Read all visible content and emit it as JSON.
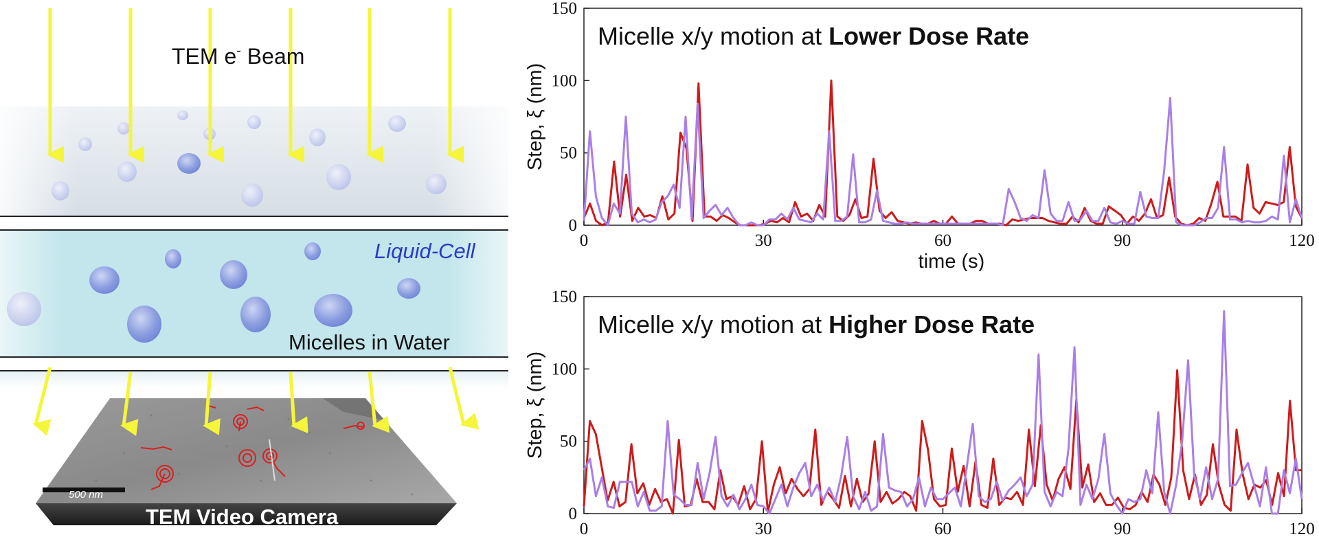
{
  "schematic": {
    "beam_label": "TEM e",
    "beam_superscript": "-",
    "beam_label_tail": " Beam",
    "liquid_cell_label": "Liquid-Cell",
    "micelles_label": "Micelles in Water",
    "camera_label": "TEM Video Camera",
    "scale_bar_label": "500 nm",
    "colors": {
      "beam": "#f5f53a",
      "liquid": "#c6e9ef",
      "micelle": "#7f93dc",
      "trajectory": "#d82020",
      "liquid_cell_text": "#2a3bc8"
    }
  },
  "chart_data": [
    {
      "type": "line",
      "title_prefix": "Micelle x/y motion at ",
      "title_bold": "Lower Dose Rate",
      "xlabel": "time (s)",
      "ylabel": "Step, ξ (nm)",
      "xlim": [
        0,
        120
      ],
      "ylim": [
        0,
        150
      ],
      "xticks": [
        0,
        30,
        60,
        90,
        120
      ],
      "yticks": [
        0,
        50,
        100,
        150
      ],
      "series": [
        {
          "color": "#cc1b1b",
          "values": [
            5,
            15,
            3,
            0,
            2,
            44,
            6,
            35,
            3,
            12,
            6,
            7,
            5,
            20,
            4,
            8,
            64,
            53,
            3,
            98,
            6,
            6,
            3,
            7,
            5,
            2,
            0,
            0,
            0,
            0,
            1,
            3,
            2,
            5,
            2,
            16,
            6,
            8,
            3,
            14,
            6,
            100,
            6,
            3,
            7,
            18,
            5,
            6,
            46,
            10,
            5,
            9,
            3,
            2,
            1,
            2,
            1,
            1,
            3,
            1,
            1,
            6,
            1,
            1,
            1,
            3,
            3,
            1,
            1,
            1,
            0,
            4,
            3,
            4,
            5,
            5,
            5,
            3,
            2,
            1,
            1,
            6,
            2,
            12,
            3,
            1,
            1,
            13,
            10,
            7,
            1,
            6,
            3,
            8,
            18,
            5,
            7,
            33,
            6,
            1,
            0,
            1,
            5,
            3,
            15,
            30,
            6,
            6,
            6,
            3,
            42,
            12,
            8,
            16,
            15,
            14,
            16,
            54,
            13,
            5
          ]
        },
        {
          "color": "#a97fe6",
          "values": [
            3,
            65,
            20,
            5,
            0,
            15,
            8,
            75,
            8,
            2,
            4,
            2,
            4,
            16,
            20,
            28,
            12,
            75,
            4,
            84,
            5,
            10,
            14,
            7,
            12,
            5,
            0,
            0,
            2,
            0,
            0,
            4,
            4,
            8,
            4,
            12,
            4,
            3,
            2,
            8,
            4,
            65,
            3,
            3,
            6,
            49,
            2,
            2,
            4,
            24,
            3,
            2,
            1,
            1,
            2,
            1,
            1,
            1,
            1,
            1,
            1,
            1,
            1,
            1,
            1,
            1,
            1,
            1,
            1,
            1,
            0,
            25,
            16,
            5,
            3,
            7,
            5,
            38,
            8,
            3,
            3,
            16,
            3,
            4,
            10,
            3,
            3,
            12,
            2,
            1,
            3,
            1,
            1,
            23,
            6,
            5,
            5,
            38,
            88,
            2,
            0,
            0,
            0,
            2,
            5,
            5,
            12,
            54,
            4,
            4,
            2,
            3,
            2,
            2,
            3,
            6,
            4,
            48,
            2,
            18,
            5
          ]
        }
      ]
    },
    {
      "type": "line",
      "title_prefix": "Micelle x/y motion at ",
      "title_bold": "Higher Dose Rate",
      "xlabel": "",
      "ylabel": "Step, ξ (nm)",
      "xlim": [
        0,
        120
      ],
      "ylim": [
        0,
        150
      ],
      "xticks": [
        0,
        30,
        60,
        90,
        120
      ],
      "yticks": [
        0,
        50,
        100,
        150
      ],
      "series": [
        {
          "color": "#cc1b1b",
          "values": [
            5,
            64,
            55,
            32,
            9,
            22,
            5,
            8,
            48,
            14,
            21,
            6,
            17,
            8,
            10,
            0,
            51,
            5,
            6,
            24,
            8,
            8,
            3,
            30,
            10,
            12,
            6,
            19,
            3,
            10,
            50,
            1,
            20,
            32,
            14,
            24,
            17,
            12,
            17,
            58,
            6,
            15,
            10,
            4,
            26,
            5,
            24,
            8,
            14,
            50,
            8,
            15,
            7,
            10,
            15,
            12,
            2,
            64,
            44,
            10,
            5,
            6,
            45,
            15,
            33,
            5,
            36,
            6,
            4,
            38,
            6,
            11,
            10,
            15,
            6,
            58,
            19,
            61,
            20,
            9,
            24,
            32,
            17,
            79,
            18,
            34,
            8,
            14,
            6,
            6,
            11,
            4,
            3,
            6,
            15,
            8,
            27,
            20,
            6,
            25,
            99,
            30,
            10,
            27,
            6,
            13,
            48,
            20,
            6,
            2,
            58,
            28,
            10,
            20,
            18,
            23,
            6,
            28,
            12,
            78,
            30,
            30
          ]
        },
        {
          "color": "#a97fe6",
          "values": [
            30,
            38,
            12,
            25,
            5,
            4,
            22,
            22,
            22,
            5,
            15,
            2,
            2,
            5,
            64,
            13,
            10,
            6,
            6,
            35,
            10,
            28,
            53,
            12,
            5,
            13,
            3,
            10,
            20,
            6,
            5,
            0,
            10,
            20,
            5,
            18,
            28,
            35,
            12,
            20,
            9,
            18,
            8,
            26,
            53,
            12,
            3,
            15,
            2,
            5,
            55,
            18,
            16,
            15,
            5,
            10,
            25,
            5,
            18,
            10,
            10,
            14,
            18,
            5,
            32,
            62,
            12,
            8,
            10,
            22,
            9,
            16,
            20,
            25,
            12,
            20,
            110,
            15,
            5,
            15,
            12,
            45,
            115,
            6,
            20,
            10,
            24,
            55,
            14,
            6,
            0,
            10,
            8,
            10,
            30,
            14,
            70,
            15,
            0,
            20,
            50,
            106,
            27,
            10,
            32,
            10,
            24,
            140,
            19,
            20,
            28,
            35,
            20,
            5,
            32,
            0,
            0,
            30,
            14,
            38,
            10
          ]
        }
      ]
    }
  ]
}
